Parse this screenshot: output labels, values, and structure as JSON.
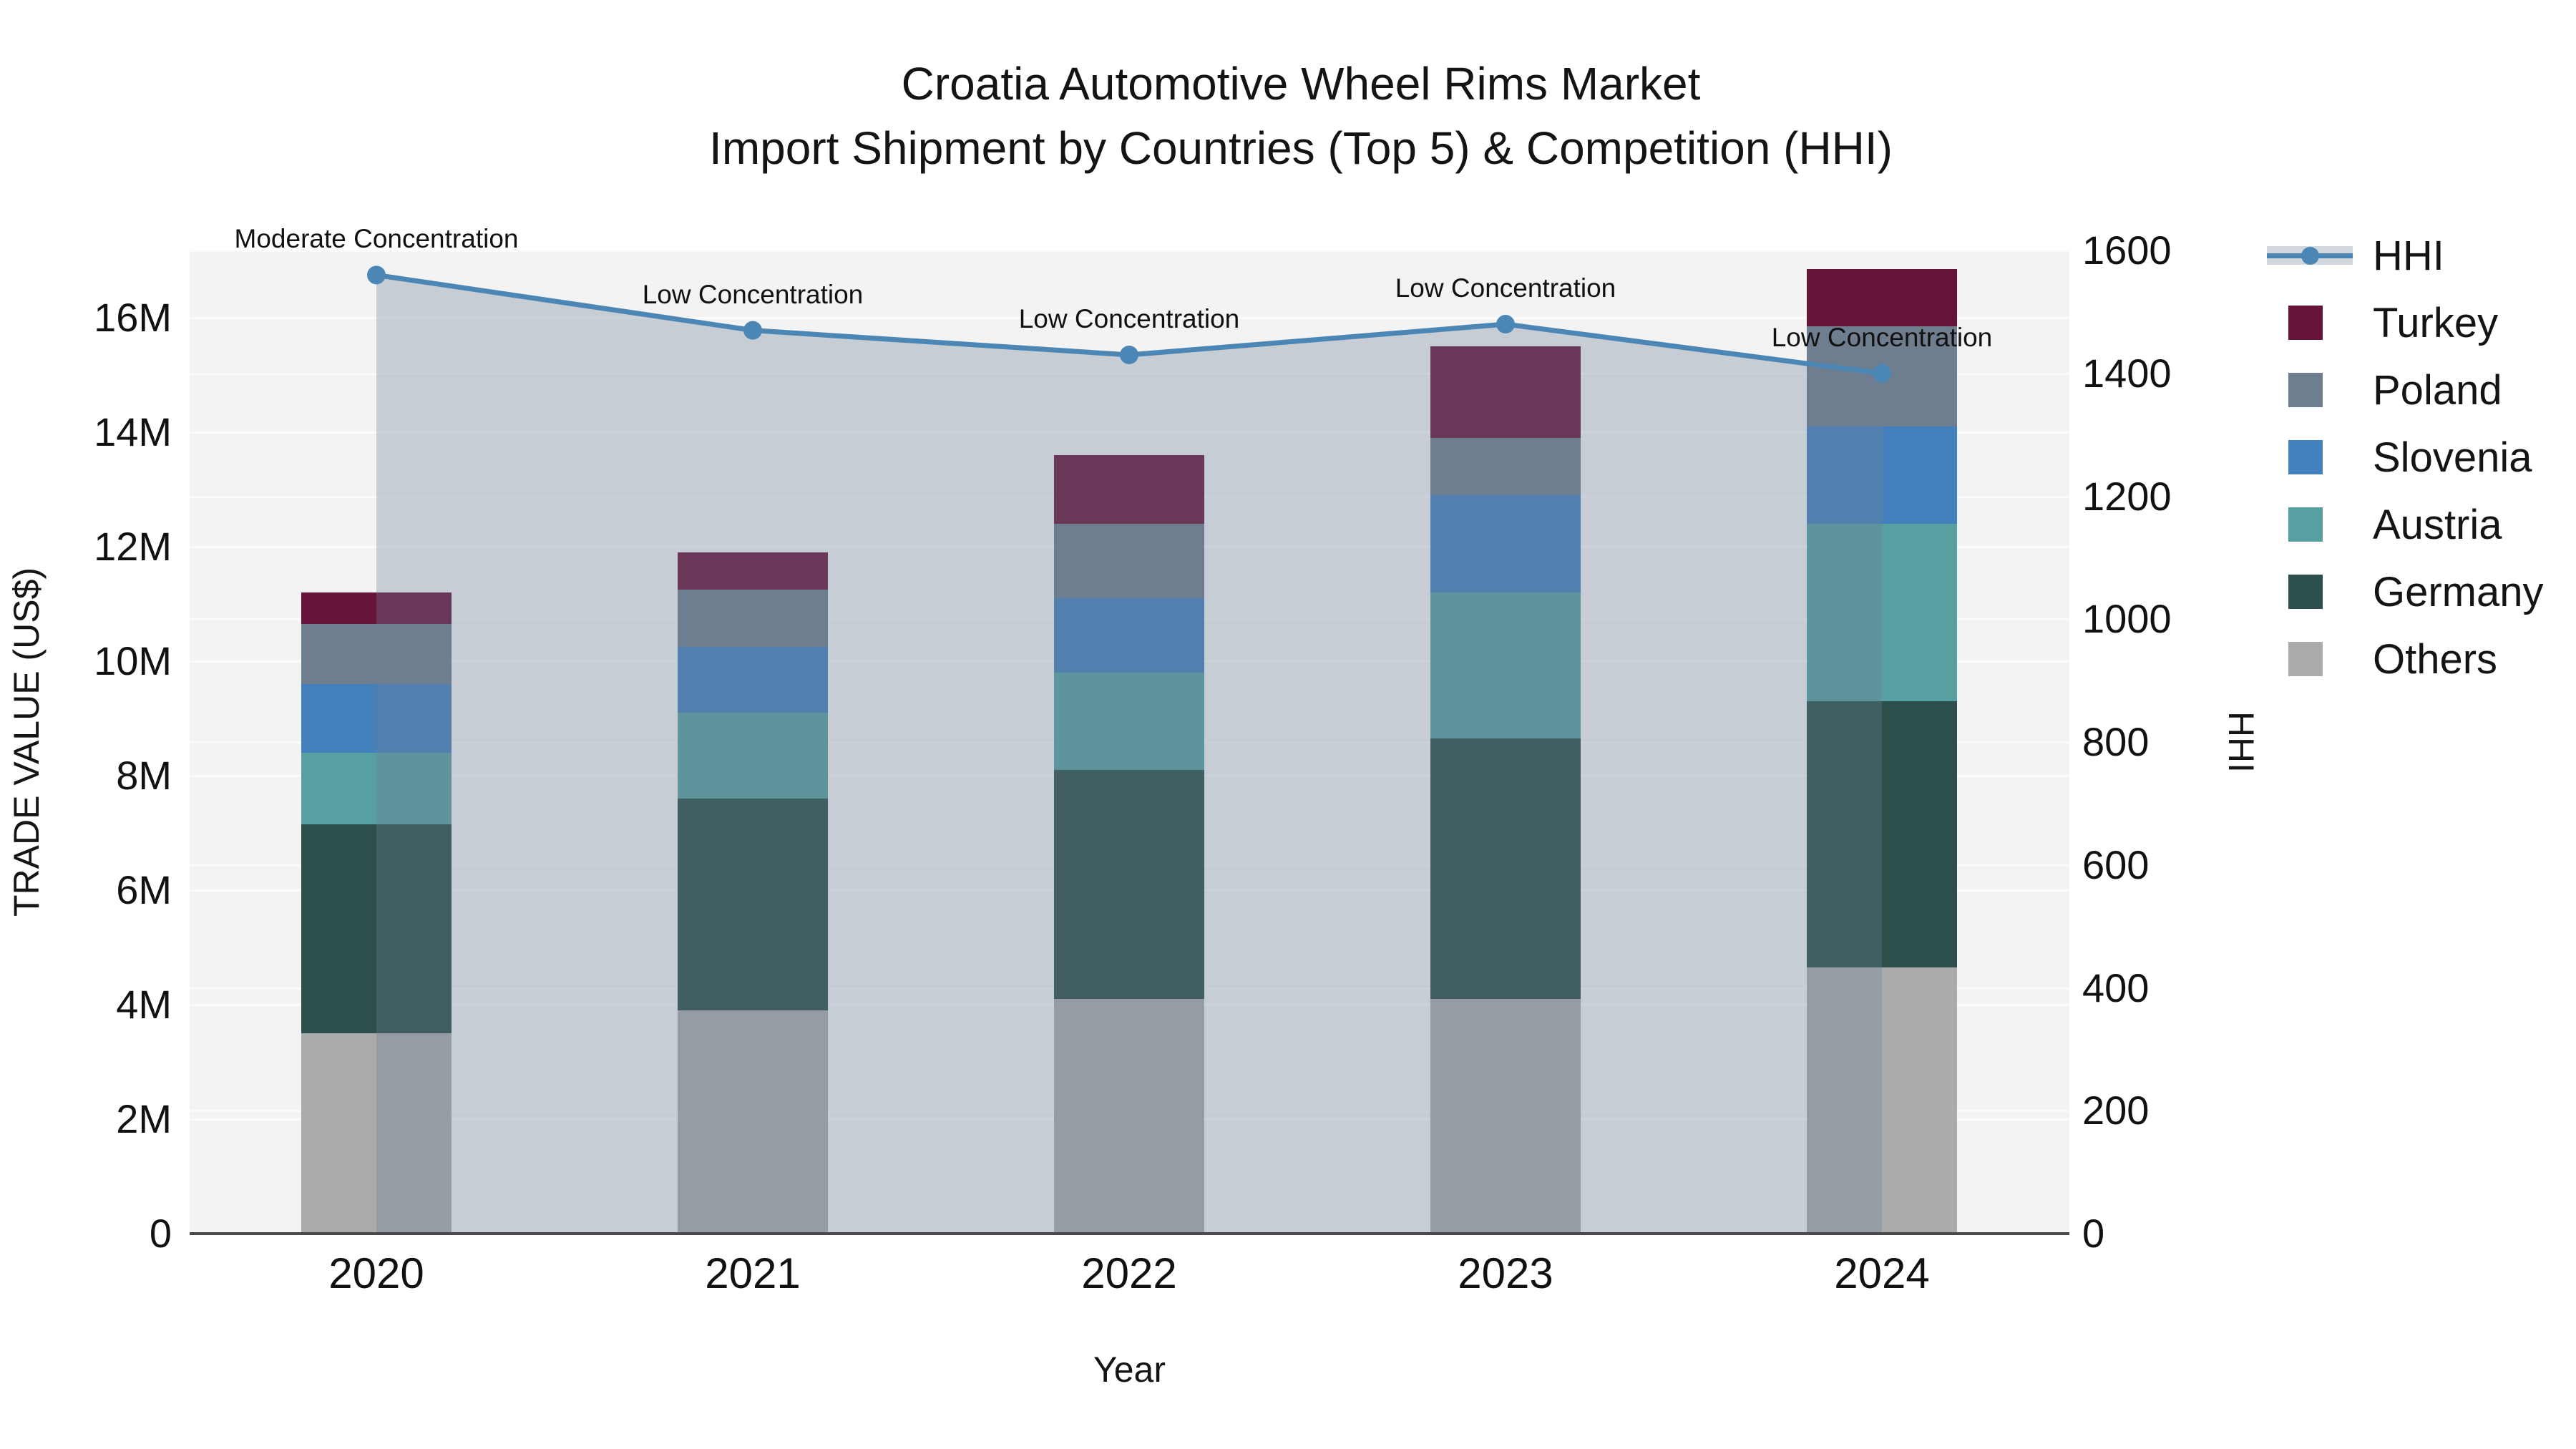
{
  "title": {
    "line1": "Croatia Automotive Wheel Rims Market",
    "line2": "Import Shipment by Countries (Top 5) & Competition (HHI)"
  },
  "axes": {
    "x": {
      "title": "Year",
      "categories": [
        "2020",
        "2021",
        "2022",
        "2023",
        "2024"
      ]
    },
    "y_left": {
      "title": "TRADE VALUE (US$)",
      "tick_labels": [
        "0",
        "2M",
        "4M",
        "6M",
        "8M",
        "10M",
        "12M",
        "14M",
        "16M"
      ],
      "tick_values_millions": [
        0,
        2,
        4,
        6,
        8,
        10,
        12,
        14,
        16
      ],
      "range_millions": [
        0,
        17.2
      ]
    },
    "y_right": {
      "title": "HHI",
      "tick_labels": [
        "0",
        "200",
        "400",
        "600",
        "800",
        "1000",
        "1200",
        "1400",
        "1600"
      ],
      "tick_values": [
        0,
        200,
        400,
        600,
        800,
        1000,
        1200,
        1400,
        1600
      ],
      "range": [
        0,
        1600
      ]
    }
  },
  "chart_data": [
    {
      "type": "bar",
      "stacked": true,
      "categories": [
        "2020",
        "2021",
        "2022",
        "2023",
        "2024"
      ],
      "value_unit": "million US$",
      "series": [
        {
          "name": "Others",
          "color": "#ABABAB",
          "values": [
            3.5,
            3.9,
            4.1,
            4.1,
            4.65
          ]
        },
        {
          "name": "Germany",
          "color": "#2C4F4B",
          "values": [
            3.65,
            3.7,
            4.0,
            4.55,
            4.65
          ]
        },
        {
          "name": "Austria",
          "color": "#57A0A2",
          "values": [
            1.25,
            1.5,
            1.7,
            2.55,
            3.1
          ]
        },
        {
          "name": "Slovenia",
          "color": "#4380BC",
          "values": [
            1.2,
            1.15,
            1.3,
            1.7,
            1.7
          ]
        },
        {
          "name": "Poland",
          "color": "#6F7E8E",
          "values": [
            1.05,
            1.0,
            1.3,
            1.0,
            1.75
          ]
        },
        {
          "name": "Turkey",
          "color": "#67143B",
          "values": [
            0.55,
            0.65,
            1.2,
            1.6,
            1.0
          ]
        }
      ],
      "totals_millions": [
        11.2,
        11.9,
        13.6,
        15.5,
        16.85
      ],
      "xlabel": "Year",
      "ylabel": "TRADE VALUE (US$)",
      "grid": true,
      "plot_background": "#F3F3F3"
    },
    {
      "type": "line",
      "name": "HHI",
      "axis": "right",
      "x": [
        "2020",
        "2021",
        "2022",
        "2023",
        "2024"
      ],
      "values": [
        1560,
        1470,
        1430,
        1480,
        1400
      ],
      "line_color": "#4C86B4",
      "area_fill": "rgba(110,128,150,0.33)",
      "markers": true,
      "annotations": [
        "Moderate Concentration",
        "Low Concentration",
        "Low Concentration",
        "Low Concentration",
        "Low Concentration"
      ],
      "ylabel": "HHI"
    }
  ],
  "legend": {
    "position": "right",
    "items": [
      {
        "label": "HHI",
        "symbol": "line-marker-band",
        "color": "#4C86B4"
      },
      {
        "label": "Turkey",
        "symbol": "square",
        "color": "#67143B"
      },
      {
        "label": "Poland",
        "symbol": "square",
        "color": "#6F7E8E"
      },
      {
        "label": "Slovenia",
        "symbol": "square",
        "color": "#4380BC"
      },
      {
        "label": "Austria",
        "symbol": "square",
        "color": "#57A0A2"
      },
      {
        "label": "Germany",
        "symbol": "square",
        "color": "#2C4F4B"
      },
      {
        "label": "Others",
        "symbol": "square",
        "color": "#ABABAB"
      }
    ]
  },
  "colors": {
    "hhi_line": "#4C86B4",
    "hhi_area": "rgba(110,128,150,0.33)",
    "plot_bg": "#F3F3F3",
    "gridline": "#FBFBFB",
    "axis_line": "#4a4a4a",
    "text": "#141414"
  }
}
